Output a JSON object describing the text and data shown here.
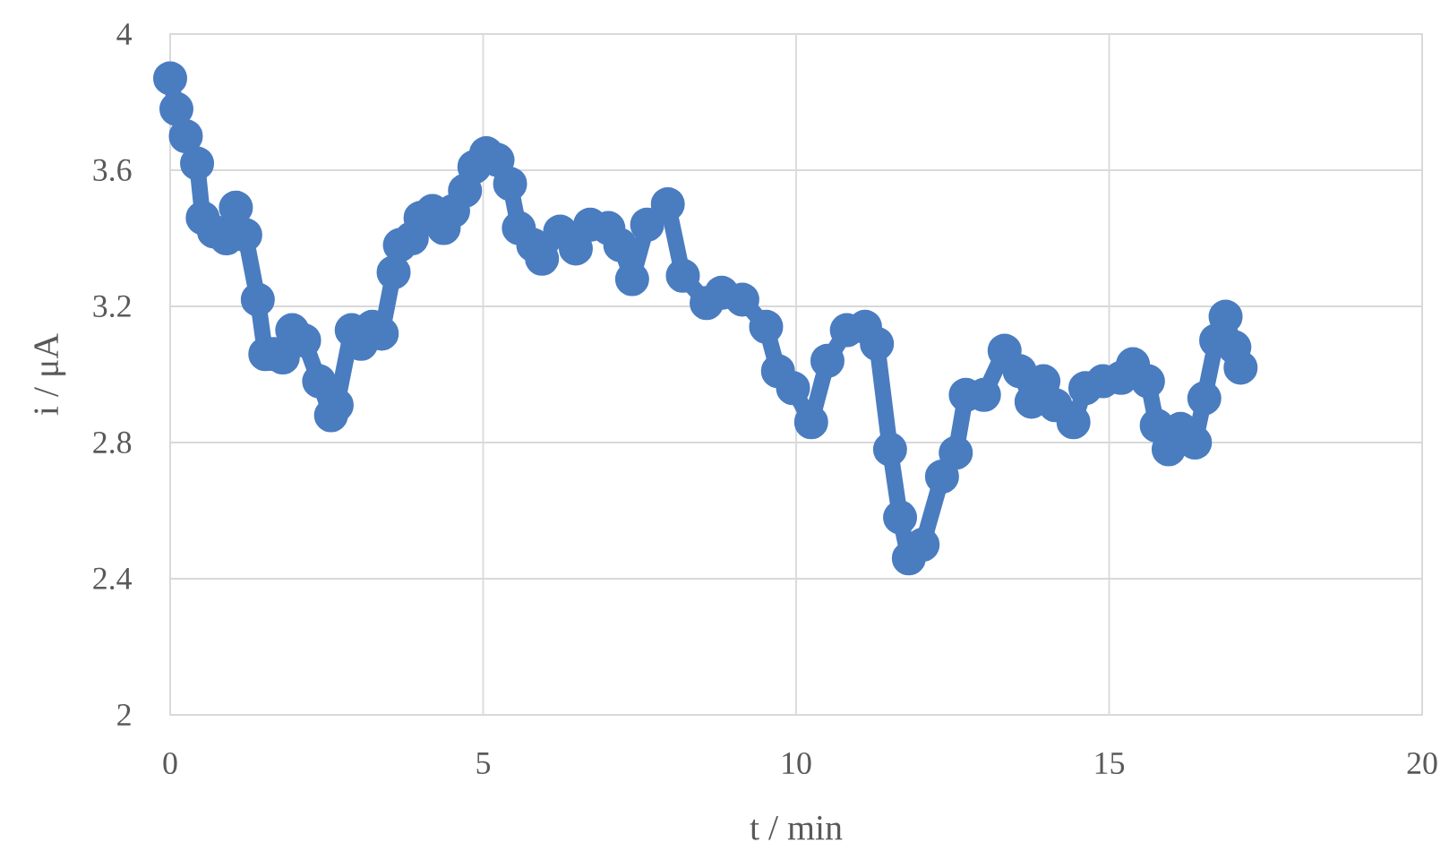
{
  "chart_data": {
    "type": "line",
    "xlabel": "t / min",
    "ylabel": "i / μA",
    "x": [
      0,
      0.1,
      0.25,
      0.43,
      0.52,
      0.7,
      0.9,
      1.05,
      1.2,
      1.4,
      1.52,
      1.66,
      1.8,
      1.95,
      2.14,
      2.38,
      2.57,
      2.66,
      2.9,
      3.05,
      3.23,
      3.38,
      3.57,
      3.67,
      3.86,
      4.0,
      4.19,
      4.37,
      4.52,
      4.71,
      4.86,
      5.05,
      5.23,
      5.43,
      5.57,
      5.8,
      5.94,
      6.23,
      6.48,
      6.71,
      7.0,
      7.19,
      7.38,
      7.62,
      7.95,
      8.19,
      8.57,
      8.81,
      9.14,
      9.52,
      9.71,
      9.95,
      10.24,
      10.5,
      10.81,
      11.1,
      11.29,
      11.5,
      11.66,
      11.8,
      12.02,
      12.33,
      12.55,
      12.71,
      13.0,
      13.33,
      13.57,
      13.76,
      13.95,
      14.14,
      14.43,
      14.62,
      14.9,
      15.19,
      15.38,
      15.62,
      15.76,
      15.95,
      16.14,
      16.37,
      16.52,
      16.71,
      16.86,
      17.0,
      17.1
    ],
    "values": [
      3.87,
      3.78,
      3.7,
      3.62,
      3.46,
      3.42,
      3.4,
      3.49,
      3.41,
      3.22,
      3.06,
      3.06,
      3.05,
      3.13,
      3.1,
      2.98,
      2.88,
      2.91,
      3.13,
      3.09,
      3.14,
      3.12,
      3.3,
      3.38,
      3.4,
      3.46,
      3.48,
      3.43,
      3.48,
      3.54,
      3.61,
      3.65,
      3.63,
      3.56,
      3.43,
      3.38,
      3.34,
      3.42,
      3.37,
      3.44,
      3.43,
      3.38,
      3.28,
      3.44,
      3.5,
      3.29,
      3.21,
      3.24,
      3.22,
      3.14,
      3.01,
      2.96,
      2.86,
      3.04,
      3.13,
      3.14,
      3.09,
      2.78,
      2.58,
      2.46,
      2.5,
      2.7,
      2.77,
      2.94,
      2.94,
      3.07,
      3.01,
      2.92,
      2.98,
      2.91,
      2.86,
      2.96,
      2.98,
      2.99,
      3.03,
      2.98,
      2.85,
      2.78,
      2.84,
      2.8,
      2.93,
      3.1,
      3.17,
      3.08,
      3.02
    ],
    "color": "#4a7cc0",
    "xlim": [
      0,
      20
    ],
    "ylim": [
      2,
      4
    ],
    "xticks": [
      0,
      5,
      10,
      15,
      20
    ],
    "yticks": [
      2,
      2.4,
      2.8,
      3.2,
      3.6,
      4
    ],
    "grid": true,
    "marker": "circle",
    "line_style": "solid"
  }
}
